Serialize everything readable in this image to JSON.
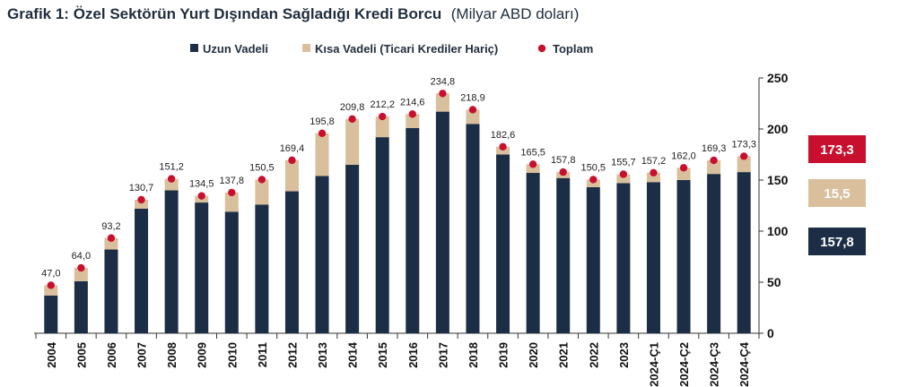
{
  "title": {
    "main": "Grafik 1: Özel Sektörün Yurt Dışından Sağladığı Kredi Borcu",
    "sub": "(Milyar ABD doları)"
  },
  "colors": {
    "long": "#1c2e45",
    "short": "#d9bf9c",
    "total": "#c8102e",
    "axis": "#333333"
  },
  "legend": [
    {
      "key": "long",
      "label": "Uzun Vadeli"
    },
    {
      "key": "short",
      "label": "Kısa Vadeli (Ticari Krediler Hariç)"
    },
    {
      "key": "total",
      "label": "Toplam"
    }
  ],
  "summary_boxes": [
    {
      "key": "total",
      "value": "173,3"
    },
    {
      "key": "short",
      "value": "15,5"
    },
    {
      "key": "long",
      "value": "157,8"
    }
  ],
  "chart_data": {
    "type": "bar",
    "stacked": true,
    "y_axis_position": "right",
    "ylim": [
      0,
      250
    ],
    "yticks": [
      0,
      50,
      100,
      150,
      200,
      250
    ],
    "categories": [
      "2004",
      "2005",
      "2006",
      "2007",
      "2008",
      "2009",
      "2010",
      "2011",
      "2012",
      "2013",
      "2014",
      "2015",
      "2016",
      "2017",
      "2018",
      "2019",
      "2020",
      "2021",
      "2022",
      "2023",
      "2024-Ç1",
      "2024-Ç2",
      "2024-Ç3",
      "2024-Ç4"
    ],
    "series": [
      {
        "name": "Uzun Vadeli",
        "type": "bar",
        "values": [
          37,
          51,
          82,
          122,
          140,
          128,
          119,
          126,
          139,
          154,
          165,
          192,
          201,
          217,
          205,
          175,
          157,
          152,
          143,
          147,
          148,
          150,
          156,
          157.8
        ]
      },
      {
        "name": "Kısa Vadeli (Ticari Krediler Hariç)",
        "type": "bar",
        "values": [
          10,
          13,
          11.2,
          8.7,
          11.2,
          6.5,
          18.8,
          24.5,
          30.4,
          41.8,
          44.8,
          20.2,
          13.6,
          17.8,
          13.9,
          7.6,
          8.5,
          5.8,
          7.5,
          8.7,
          9.2,
          12,
          13.3,
          15.5
        ]
      },
      {
        "name": "Toplam",
        "type": "scatter",
        "values": [
          47.0,
          64.0,
          93.2,
          130.7,
          151.2,
          134.5,
          137.8,
          150.5,
          169.4,
          195.8,
          209.8,
          212.2,
          214.6,
          234.8,
          218.9,
          182.6,
          165.5,
          157.8,
          150.5,
          155.7,
          157.2,
          162.0,
          169.3,
          173.3
        ],
        "labels": [
          "47,0",
          "64,0",
          "93,2",
          "130,7",
          "151,2",
          "134,5",
          "137,8",
          "150,5",
          "169,4",
          "195,8",
          "209,8",
          "212,2",
          "214,6",
          "234,8",
          "218,9",
          "182,6",
          "165,5",
          "157,8",
          "150,5",
          "155,7",
          "157,2",
          "162,0",
          "169,3",
          "173,3"
        ]
      }
    ]
  }
}
